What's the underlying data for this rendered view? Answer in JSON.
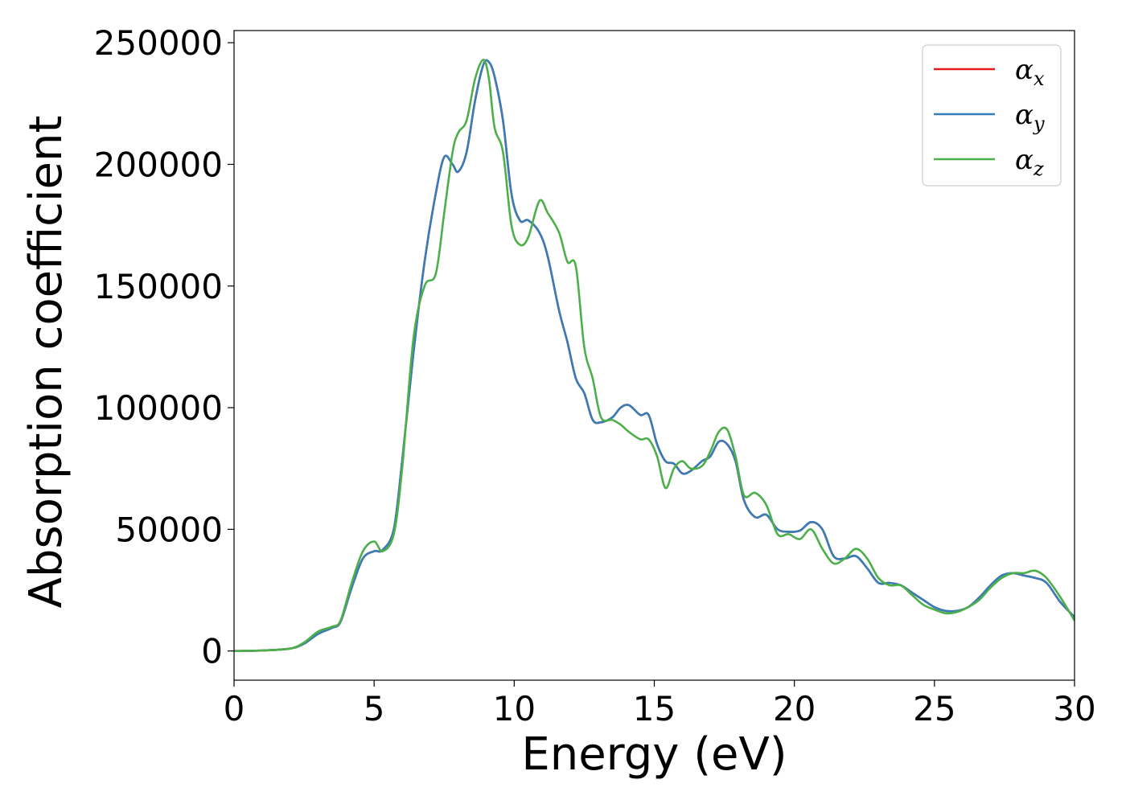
{
  "chart_data": {
    "type": "line",
    "xlabel": "Energy (eV)",
    "ylabel": "Absorption coefficient",
    "xlim": [
      0,
      30
    ],
    "ylim": [
      -12000,
      255000
    ],
    "xticks": [
      0,
      5,
      10,
      15,
      20,
      25,
      30
    ],
    "yticks": [
      0,
      50000,
      100000,
      150000,
      200000,
      250000
    ],
    "grid": false,
    "legend_position": "top-right",
    "series": [
      {
        "name": "αx",
        "symbol": "α",
        "sub": "x",
        "color": "#e41a1c",
        "x": [
          0,
          1,
          2,
          2.5,
          3,
          3.5,
          3.8,
          4.2,
          4.6,
          5,
          5.3,
          5.7,
          6,
          6.4,
          6.8,
          7.2,
          7.5,
          7.8,
          8,
          8.3,
          8.6,
          8.9,
          9.1,
          9.3,
          9.6,
          9.9,
          10.2,
          10.5,
          10.9,
          11.2,
          11.6,
          11.9,
          12.2,
          12.5,
          12.8,
          13.1,
          13.5,
          13.8,
          14.1,
          14.5,
          14.8,
          15.1,
          15.4,
          15.7,
          16,
          16.3,
          16.7,
          17,
          17.3,
          17.6,
          17.9,
          18.2,
          18.6,
          19,
          19.4,
          19.8,
          20.2,
          20.6,
          21,
          21.4,
          21.8,
          22.2,
          22.6,
          23,
          23.4,
          23.8,
          24.2,
          24.6,
          25,
          25.4,
          25.8,
          26.2,
          26.6,
          27,
          27.4,
          27.8,
          28.2,
          28.6,
          29,
          29.5,
          30
        ],
        "y": [
          0,
          200,
          1000,
          3000,
          7000,
          9500,
          12000,
          26000,
          38000,
          41000,
          41500,
          50000,
          78000,
          122000,
          160000,
          188000,
          203000,
          200000,
          197000,
          205000,
          226000,
          241000,
          242000,
          236000,
          218000,
          188000,
          177000,
          177000,
          172000,
          162000,
          140000,
          127000,
          112000,
          106000,
          95000,
          94000,
          96000,
          100000,
          101000,
          97000,
          97000,
          85000,
          78000,
          77000,
          73000,
          74000,
          78000,
          80000,
          86000,
          85000,
          78000,
          62000,
          55000,
          56000,
          50000,
          49000,
          49500,
          53000,
          50000,
          39000,
          38000,
          39000,
          34000,
          28000,
          28000,
          27000,
          24000,
          21000,
          18000,
          16500,
          16500,
          18000,
          22000,
          27000,
          31000,
          32000,
          31000,
          30000,
          28000,
          20000,
          14000
        ]
      },
      {
        "name": "αy",
        "symbol": "α",
        "sub": "y",
        "color": "#377eb8",
        "x": [
          0,
          1,
          2,
          2.5,
          3,
          3.5,
          3.8,
          4.2,
          4.6,
          5,
          5.3,
          5.7,
          6,
          6.4,
          6.8,
          7.2,
          7.5,
          7.8,
          8,
          8.3,
          8.6,
          8.9,
          9.1,
          9.3,
          9.6,
          9.9,
          10.2,
          10.5,
          10.9,
          11.2,
          11.6,
          11.9,
          12.2,
          12.5,
          12.8,
          13.1,
          13.5,
          13.8,
          14.1,
          14.5,
          14.8,
          15.1,
          15.4,
          15.7,
          16,
          16.3,
          16.7,
          17,
          17.3,
          17.6,
          17.9,
          18.2,
          18.6,
          19,
          19.4,
          19.8,
          20.2,
          20.6,
          21,
          21.4,
          21.8,
          22.2,
          22.6,
          23,
          23.4,
          23.8,
          24.2,
          24.6,
          25,
          25.4,
          25.8,
          26.2,
          26.6,
          27,
          27.4,
          27.8,
          28.2,
          28.6,
          29,
          29.5,
          30
        ],
        "y": [
          0,
          200,
          1000,
          3000,
          7000,
          9500,
          12000,
          26000,
          38000,
          41000,
          41500,
          50000,
          78000,
          122000,
          160000,
          188000,
          203000,
          200000,
          197000,
          205000,
          226000,
          241000,
          242000,
          236000,
          218000,
          188000,
          177000,
          177000,
          172000,
          162000,
          140000,
          127000,
          112000,
          106000,
          95000,
          94000,
          96000,
          100000,
          101000,
          97000,
          97000,
          85000,
          78000,
          77000,
          73000,
          74000,
          78000,
          80000,
          86000,
          85000,
          78000,
          62000,
          55000,
          56000,
          50000,
          49000,
          49500,
          53000,
          50000,
          39000,
          38000,
          39000,
          34000,
          28000,
          28000,
          27000,
          24000,
          21000,
          18000,
          16500,
          16500,
          18000,
          22000,
          27000,
          31000,
          32000,
          31000,
          30000,
          28000,
          20000,
          14000
        ]
      },
      {
        "name": "αz",
        "symbol": "α",
        "sub": "z",
        "color": "#4daf4a",
        "x": [
          0,
          1,
          2,
          2.5,
          3,
          3.5,
          3.8,
          4.2,
          4.6,
          5,
          5.3,
          5.7,
          6,
          6.4,
          6.8,
          7.2,
          7.5,
          7.8,
          8,
          8.3,
          8.6,
          8.9,
          9.1,
          9.3,
          9.6,
          9.9,
          10.2,
          10.5,
          10.9,
          11.2,
          11.6,
          11.9,
          12.2,
          12.5,
          12.8,
          13.1,
          13.5,
          13.8,
          14.1,
          14.5,
          14.8,
          15.1,
          15.4,
          15.7,
          16,
          16.3,
          16.7,
          17,
          17.3,
          17.6,
          17.9,
          18.2,
          18.6,
          19,
          19.4,
          19.8,
          20.2,
          20.6,
          21,
          21.4,
          21.8,
          22.2,
          22.6,
          23,
          23.4,
          23.8,
          24.2,
          24.6,
          25,
          25.4,
          25.8,
          26.2,
          26.6,
          27,
          27.4,
          27.8,
          28.2,
          28.6,
          29,
          29.5,
          30
        ],
        "y": [
          0,
          200,
          1000,
          3500,
          8000,
          10000,
          12500,
          28000,
          41000,
          45000,
          41000,
          48000,
          75000,
          128000,
          150000,
          155000,
          180000,
          205000,
          213000,
          218000,
          235000,
          243000,
          235000,
          215000,
          205000,
          175000,
          167000,
          170000,
          185000,
          180000,
          172000,
          160000,
          158000,
          125000,
          112000,
          96000,
          95000,
          93000,
          90000,
          87000,
          87000,
          80000,
          67000,
          75000,
          78000,
          75000,
          76000,
          82000,
          90000,
          91000,
          80000,
          64000,
          65000,
          60000,
          48000,
          48000,
          46000,
          50000,
          42000,
          36000,
          38000,
          42000,
          38000,
          30000,
          27000,
          27000,
          23000,
          19000,
          17000,
          15500,
          16000,
          18000,
          21000,
          26000,
          30000,
          32000,
          32000,
          33000,
          30000,
          22000,
          12500
        ]
      }
    ]
  }
}
